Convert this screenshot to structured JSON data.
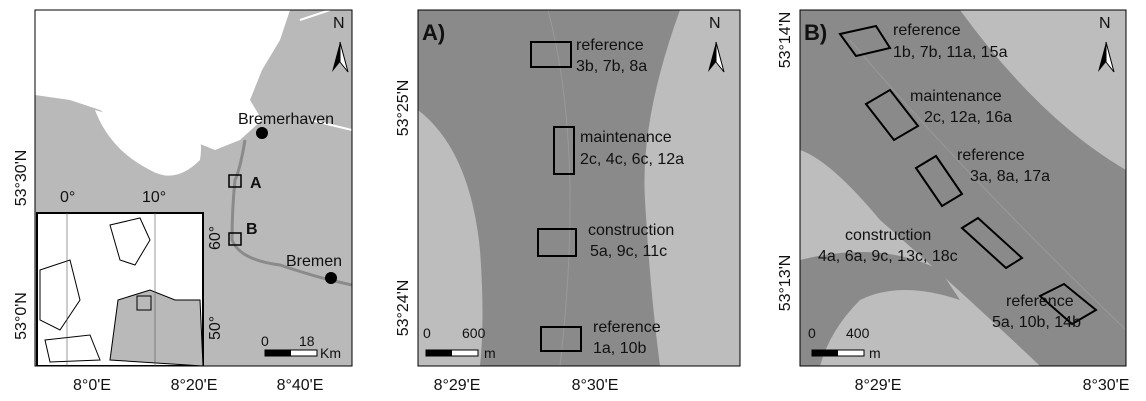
{
  "overview": {
    "north": "N",
    "places": [
      "Bremerhaven",
      "Bremen"
    ],
    "site_labels": [
      "A",
      "B"
    ],
    "inset_labels": [
      "0°",
      "10°",
      "60°",
      "50°"
    ],
    "scale": {
      "start": "0",
      "end": "18",
      "unit": "Km"
    },
    "y_labels": [
      "53°30'N",
      "53°0'N"
    ],
    "x_labels": [
      "8°0'E",
      "8°20'E",
      "8°40'E"
    ]
  },
  "panel_a": {
    "label": "A)",
    "north": "N",
    "sites": [
      {
        "name": "reference",
        "codes": "3b, 7b, 8a"
      },
      {
        "name": "maintenance",
        "codes": "2c, 4c, 6c, 12a"
      },
      {
        "name": "construction",
        "codes": "5a, 9c, 11c"
      },
      {
        "name": "reference",
        "codes": "1a, 10b"
      }
    ],
    "scale": {
      "start": "0",
      "end": "600",
      "unit": "m"
    },
    "y_labels": [
      "53°25'N",
      "53°24'N"
    ],
    "x_labels": [
      "8°29'E",
      "8°30'E"
    ]
  },
  "panel_b": {
    "label": "B)",
    "north": "N",
    "sites": [
      {
        "name": "reference",
        "codes": "1b, 7b, 11a, 15a"
      },
      {
        "name": "maintenance",
        "codes": "2c, 12a, 16a"
      },
      {
        "name": "reference",
        "codes": "3a, 8a, 17a"
      },
      {
        "name": "construction",
        "codes": "4a, 6a, 9c, 13c, 18c"
      },
      {
        "name": "reference",
        "codes": "5a, 10b, 14b"
      }
    ],
    "scale": {
      "start": "0",
      "end": "400",
      "unit": "m"
    },
    "y_labels": [
      "53°14'N",
      "53°13'N"
    ],
    "x_labels": [
      "8°29'E",
      "8°30'E"
    ]
  }
}
